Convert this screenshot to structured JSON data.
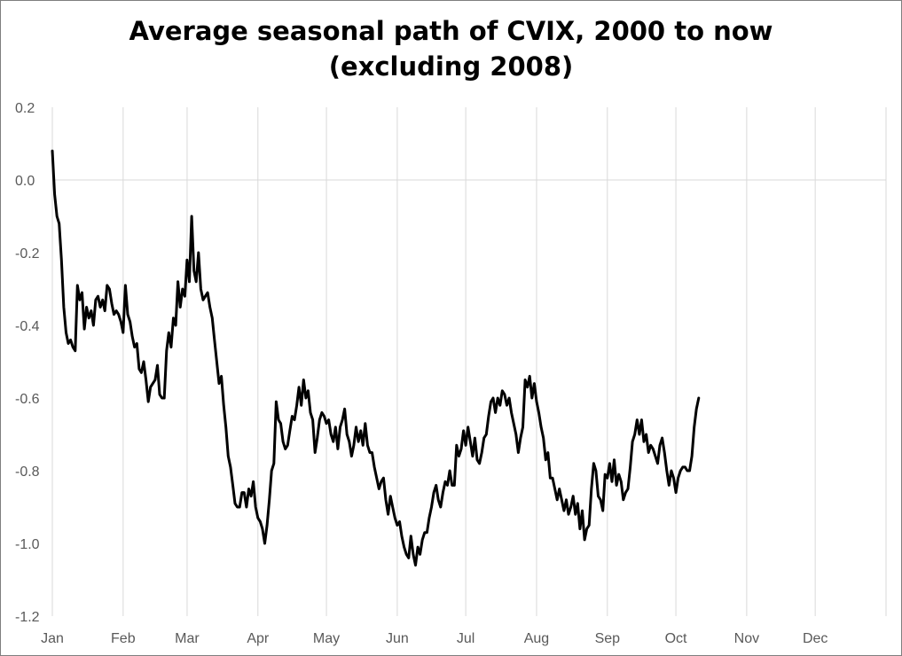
{
  "chart_data": {
    "type": "line",
    "title_lines": [
      "Average seasonal path of CVIX, 2000 to now",
      "(excluding 2008)"
    ],
    "xlabel": "",
    "ylabel": "",
    "ylim": [
      -1.2,
      0.2
    ],
    "yticks": [
      "0.2",
      "0.0",
      "-0.2",
      "-0.4",
      "-0.6",
      "-0.8",
      "-1.0",
      "-1.2"
    ],
    "ytick_values": [
      0.2,
      0.0,
      -0.2,
      -0.4,
      -0.6,
      -0.8,
      -1.0,
      -1.2
    ],
    "xlim_day": [
      1,
      366
    ],
    "months": [
      "Jan",
      "Feb",
      "Mar",
      "Apr",
      "May",
      "Jun",
      "Jul",
      "Aug",
      "Sep",
      "Oct",
      "Nov",
      "Dec"
    ],
    "month_start_day": [
      1,
      32,
      60,
      91,
      121,
      152,
      182,
      213,
      244,
      274,
      305,
      335
    ],
    "grid": "vertical at month starts, horizontal at 0.0",
    "line_color": "#000000",
    "series": [
      {
        "name": "",
        "points": [
          [
            1,
            0.08
          ],
          [
            2,
            -0.04
          ],
          [
            3,
            -0.1
          ],
          [
            4,
            -0.12
          ],
          [
            5,
            -0.22
          ],
          [
            6,
            -0.35
          ],
          [
            7,
            -0.42
          ],
          [
            8,
            -0.45
          ],
          [
            9,
            -0.44
          ],
          [
            10,
            -0.46
          ],
          [
            11,
            -0.47
          ],
          [
            12,
            -0.29
          ],
          [
            13,
            -0.33
          ],
          [
            14,
            -0.31
          ],
          [
            15,
            -0.41
          ],
          [
            16,
            -0.35
          ],
          [
            17,
            -0.38
          ],
          [
            18,
            -0.36
          ],
          [
            19,
            -0.4
          ],
          [
            20,
            -0.33
          ],
          [
            21,
            -0.32
          ],
          [
            22,
            -0.35
          ],
          [
            23,
            -0.33
          ],
          [
            24,
            -0.36
          ],
          [
            25,
            -0.29
          ],
          [
            26,
            -0.3
          ],
          [
            27,
            -0.34
          ],
          [
            28,
            -0.37
          ],
          [
            29,
            -0.36
          ],
          [
            30,
            -0.37
          ],
          [
            31,
            -0.39
          ],
          [
            32,
            -0.42
          ],
          [
            33,
            -0.29
          ],
          [
            34,
            -0.37
          ],
          [
            35,
            -0.39
          ],
          [
            36,
            -0.43
          ],
          [
            37,
            -0.46
          ],
          [
            38,
            -0.45
          ],
          [
            39,
            -0.52
          ],
          [
            40,
            -0.53
          ],
          [
            41,
            -0.5
          ],
          [
            42,
            -0.55
          ],
          [
            43,
            -0.61
          ],
          [
            44,
            -0.57
          ],
          [
            45,
            -0.56
          ],
          [
            46,
            -0.55
          ],
          [
            47,
            -0.51
          ],
          [
            48,
            -0.59
          ],
          [
            49,
            -0.6
          ],
          [
            50,
            -0.6
          ],
          [
            51,
            -0.47
          ],
          [
            52,
            -0.42
          ],
          [
            53,
            -0.46
          ],
          [
            54,
            -0.38
          ],
          [
            55,
            -0.4
          ],
          [
            56,
            -0.28
          ],
          [
            57,
            -0.35
          ],
          [
            58,
            -0.3
          ],
          [
            59,
            -0.32
          ],
          [
            60,
            -0.22
          ],
          [
            61,
            -0.28
          ],
          [
            62,
            -0.1
          ],
          [
            63,
            -0.25
          ],
          [
            64,
            -0.28
          ],
          [
            65,
            -0.2
          ],
          [
            66,
            -0.3
          ],
          [
            67,
            -0.33
          ],
          [
            68,
            -0.32
          ],
          [
            69,
            -0.31
          ],
          [
            70,
            -0.35
          ],
          [
            71,
            -0.38
          ],
          [
            72,
            -0.44
          ],
          [
            73,
            -0.5
          ],
          [
            74,
            -0.56
          ],
          [
            75,
            -0.54
          ],
          [
            76,
            -0.62
          ],
          [
            77,
            -0.68
          ],
          [
            78,
            -0.76
          ],
          [
            79,
            -0.79
          ],
          [
            80,
            -0.84
          ],
          [
            81,
            -0.89
          ],
          [
            82,
            -0.9
          ],
          [
            83,
            -0.9
          ],
          [
            84,
            -0.86
          ],
          [
            85,
            -0.86
          ],
          [
            86,
            -0.9
          ],
          [
            87,
            -0.85
          ],
          [
            88,
            -0.87
          ],
          [
            89,
            -0.83
          ],
          [
            90,
            -0.9
          ],
          [
            91,
            -0.93
          ],
          [
            92,
            -0.94
          ],
          [
            93,
            -0.96
          ],
          [
            94,
            -1.0
          ],
          [
            95,
            -0.95
          ],
          [
            96,
            -0.88
          ],
          [
            97,
            -0.8
          ],
          [
            98,
            -0.78
          ],
          [
            99,
            -0.61
          ],
          [
            100,
            -0.66
          ],
          [
            101,
            -0.67
          ],
          [
            102,
            -0.72
          ],
          [
            103,
            -0.74
          ],
          [
            104,
            -0.73
          ],
          [
            105,
            -0.69
          ],
          [
            106,
            -0.65
          ],
          [
            107,
            -0.66
          ],
          [
            108,
            -0.62
          ],
          [
            109,
            -0.57
          ],
          [
            110,
            -0.62
          ],
          [
            111,
            -0.55
          ],
          [
            112,
            -0.6
          ],
          [
            113,
            -0.58
          ],
          [
            114,
            -0.64
          ],
          [
            115,
            -0.66
          ],
          [
            116,
            -0.75
          ],
          [
            117,
            -0.71
          ],
          [
            118,
            -0.66
          ],
          [
            119,
            -0.64
          ],
          [
            120,
            -0.65
          ],
          [
            121,
            -0.67
          ],
          [
            122,
            -0.66
          ],
          [
            123,
            -0.7
          ],
          [
            124,
            -0.72
          ],
          [
            125,
            -0.68
          ],
          [
            126,
            -0.74
          ],
          [
            127,
            -0.68
          ],
          [
            128,
            -0.66
          ],
          [
            129,
            -0.63
          ],
          [
            130,
            -0.7
          ],
          [
            131,
            -0.72
          ],
          [
            132,
            -0.76
          ],
          [
            133,
            -0.73
          ],
          [
            134,
            -0.68
          ],
          [
            135,
            -0.72
          ],
          [
            136,
            -0.69
          ],
          [
            137,
            -0.73
          ],
          [
            138,
            -0.67
          ],
          [
            139,
            -0.73
          ],
          [
            140,
            -0.75
          ],
          [
            141,
            -0.75
          ],
          [
            142,
            -0.79
          ],
          [
            143,
            -0.82
          ],
          [
            144,
            -0.85
          ],
          [
            145,
            -0.83
          ],
          [
            146,
            -0.82
          ],
          [
            147,
            -0.88
          ],
          [
            148,
            -0.92
          ],
          [
            149,
            -0.87
          ],
          [
            150,
            -0.9
          ],
          [
            151,
            -0.93
          ],
          [
            152,
            -0.95
          ],
          [
            153,
            -0.94
          ],
          [
            154,
            -0.98
          ],
          [
            155,
            -1.01
          ],
          [
            156,
            -1.03
          ],
          [
            157,
            -1.04
          ],
          [
            158,
            -0.98
          ],
          [
            159,
            -1.03
          ],
          [
            160,
            -1.06
          ],
          [
            161,
            -1.01
          ],
          [
            162,
            -1.03
          ],
          [
            163,
            -0.99
          ],
          [
            164,
            -0.97
          ],
          [
            165,
            -0.97
          ],
          [
            166,
            -0.93
          ],
          [
            167,
            -0.9
          ],
          [
            168,
            -0.86
          ],
          [
            169,
            -0.84
          ],
          [
            170,
            -0.88
          ],
          [
            171,
            -0.9
          ],
          [
            172,
            -0.86
          ],
          [
            173,
            -0.83
          ],
          [
            174,
            -0.84
          ],
          [
            175,
            -0.8
          ],
          [
            176,
            -0.84
          ],
          [
            177,
            -0.84
          ],
          [
            178,
            -0.73
          ],
          [
            179,
            -0.76
          ],
          [
            180,
            -0.74
          ],
          [
            181,
            -0.69
          ],
          [
            182,
            -0.73
          ],
          [
            183,
            -0.68
          ],
          [
            184,
            -0.72
          ],
          [
            185,
            -0.76
          ],
          [
            186,
            -0.71
          ],
          [
            187,
            -0.77
          ],
          [
            188,
            -0.78
          ],
          [
            189,
            -0.75
          ],
          [
            190,
            -0.71
          ],
          [
            191,
            -0.7
          ],
          [
            192,
            -0.65
          ],
          [
            193,
            -0.61
          ],
          [
            194,
            -0.6
          ],
          [
            195,
            -0.64
          ],
          [
            196,
            -0.6
          ],
          [
            197,
            -0.62
          ],
          [
            198,
            -0.58
          ],
          [
            199,
            -0.59
          ],
          [
            200,
            -0.62
          ],
          [
            201,
            -0.6
          ],
          [
            202,
            -0.64
          ],
          [
            203,
            -0.67
          ],
          [
            204,
            -0.7
          ],
          [
            205,
            -0.75
          ],
          [
            206,
            -0.71
          ],
          [
            207,
            -0.68
          ],
          [
            208,
            -0.55
          ],
          [
            209,
            -0.57
          ],
          [
            210,
            -0.54
          ],
          [
            211,
            -0.6
          ],
          [
            212,
            -0.56
          ],
          [
            213,
            -0.61
          ],
          [
            214,
            -0.64
          ],
          [
            215,
            -0.68
          ],
          [
            216,
            -0.71
          ],
          [
            217,
            -0.77
          ],
          [
            218,
            -0.75
          ],
          [
            219,
            -0.82
          ],
          [
            220,
            -0.82
          ],
          [
            221,
            -0.85
          ],
          [
            222,
            -0.88
          ],
          [
            223,
            -0.85
          ],
          [
            224,
            -0.88
          ],
          [
            225,
            -0.91
          ],
          [
            226,
            -0.88
          ],
          [
            227,
            -0.92
          ],
          [
            228,
            -0.9
          ],
          [
            229,
            -0.87
          ],
          [
            230,
            -0.92
          ],
          [
            231,
            -0.89
          ],
          [
            232,
            -0.96
          ],
          [
            233,
            -0.91
          ],
          [
            234,
            -0.99
          ],
          [
            235,
            -0.96
          ],
          [
            236,
            -0.95
          ],
          [
            237,
            -0.85
          ],
          [
            238,
            -0.78
          ],
          [
            239,
            -0.8
          ],
          [
            240,
            -0.87
          ],
          [
            241,
            -0.88
          ],
          [
            242,
            -0.91
          ],
          [
            243,
            -0.81
          ],
          [
            244,
            -0.82
          ],
          [
            245,
            -0.78
          ],
          [
            246,
            -0.83
          ],
          [
            247,
            -0.77
          ],
          [
            248,
            -0.84
          ],
          [
            249,
            -0.81
          ],
          [
            250,
            -0.83
          ],
          [
            251,
            -0.88
          ],
          [
            252,
            -0.86
          ],
          [
            253,
            -0.85
          ],
          [
            254,
            -0.79
          ],
          [
            255,
            -0.72
          ],
          [
            256,
            -0.7
          ],
          [
            257,
            -0.66
          ],
          [
            258,
            -0.7
          ],
          [
            259,
            -0.66
          ],
          [
            260,
            -0.72
          ],
          [
            261,
            -0.7
          ],
          [
            262,
            -0.75
          ],
          [
            263,
            -0.73
          ],
          [
            264,
            -0.74
          ],
          [
            265,
            -0.76
          ],
          [
            266,
            -0.78
          ],
          [
            267,
            -0.73
          ],
          [
            268,
            -0.71
          ],
          [
            269,
            -0.75
          ],
          [
            270,
            -0.8
          ],
          [
            271,
            -0.84
          ],
          [
            272,
            -0.8
          ],
          [
            273,
            -0.82
          ],
          [
            274,
            -0.86
          ],
          [
            275,
            -0.82
          ],
          [
            276,
            -0.8
          ],
          [
            277,
            -0.79
          ],
          [
            278,
            -0.79
          ],
          [
            279,
            -0.8
          ],
          [
            280,
            -0.8
          ],
          [
            281,
            -0.76
          ],
          [
            282,
            -0.68
          ],
          [
            283,
            -0.63
          ],
          [
            284,
            -0.6
          ]
        ]
      }
    ]
  }
}
